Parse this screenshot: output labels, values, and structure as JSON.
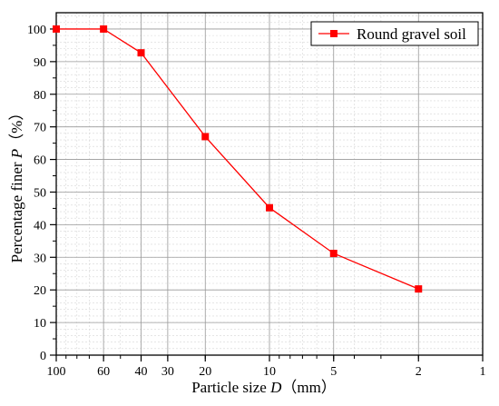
{
  "chart_data": {
    "type": "line",
    "xlabel": {
      "prefix": "Particle size ",
      "var": "D",
      "suffix": "（mm）"
    },
    "ylabel": {
      "prefix": "Percentage finer ",
      "var": "P",
      "suffix": "（%）"
    },
    "x_scale": "log-reversed",
    "xlim": [
      100,
      1
    ],
    "ylim": [
      0,
      105
    ],
    "x_ticks": [
      100,
      60,
      40,
      30,
      20,
      10,
      5,
      2,
      1
    ],
    "y_ticks": [
      0,
      10,
      20,
      30,
      40,
      50,
      60,
      70,
      80,
      90,
      100
    ],
    "grid": true,
    "legend_position": "top-right",
    "series": [
      {
        "name": "Round gravel soil",
        "color": "#ff0000",
        "marker": "square",
        "x": [
          100,
          60,
          40,
          20,
          10,
          5,
          2
        ],
        "y": [
          100,
          100,
          92.7,
          67,
          45.2,
          31.2,
          20.3
        ]
      }
    ]
  }
}
